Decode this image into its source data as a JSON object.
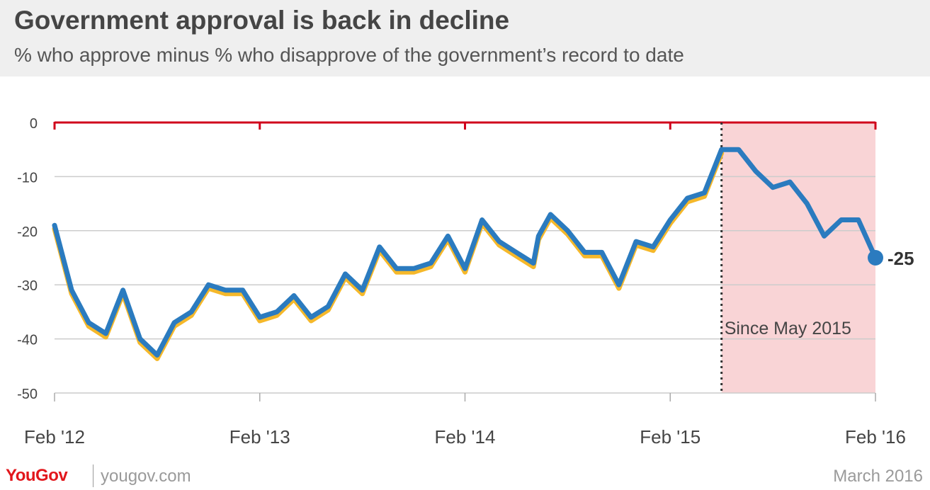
{
  "header": {
    "title": "Government approval is back in decline",
    "subtitle": "% who approve minus % who disapprove of the government’s record to date"
  },
  "footer": {
    "brand": "YouGov",
    "site": "yougov.com",
    "date": "March 2016"
  },
  "colors": {
    "line": "#2b7bbf",
    "shadow": "#f5b82a",
    "zero_axis": "#d0021b",
    "shade": "#f9d4d6",
    "grid": "#cccccc",
    "text": "#454545"
  },
  "chart_data": {
    "type": "line",
    "title": "Government approval is back in decline",
    "subtitle": "% who approve minus % who disapprove of the government’s record to date",
    "xlabel": "",
    "ylabel": "",
    "ylim": [
      -50,
      0
    ],
    "yticks": [
      0,
      -10,
      -20,
      -30,
      -40,
      -50
    ],
    "ytick_labels": [
      "0",
      "-10",
      "-20",
      "-30",
      "-40",
      "-50"
    ],
    "xticks": [
      "Feb '12",
      "Feb '13",
      "Feb '14",
      "Feb '15",
      "Feb '16"
    ],
    "grid": true,
    "x_unit": "months since Feb '12",
    "series": [
      {
        "x": [
          0,
          1,
          2,
          3,
          4,
          5,
          6,
          7,
          8,
          9,
          10,
          11,
          12,
          13,
          14,
          15,
          16,
          17,
          18,
          19,
          20,
          21,
          22,
          23,
          24,
          25,
          26,
          27,
          28,
          28.3,
          29,
          30,
          31,
          32,
          33,
          34,
          35,
          36,
          37,
          38,
          39,
          40,
          41,
          42,
          43,
          44,
          45,
          46,
          47,
          48
        ],
        "values": [
          -19,
          -31,
          -37,
          -39,
          -31,
          -40,
          -43,
          -37,
          -35,
          -30,
          -31,
          -31,
          -36,
          -35,
          -32,
          -36,
          -34,
          -28,
          -31,
          -23,
          -27,
          -27,
          -26,
          -21,
          -27,
          -18,
          -22,
          -24,
          -26,
          -21,
          -17,
          -20,
          -24,
          -24,
          -30,
          -22,
          -23,
          -18,
          -14,
          -13,
          -5,
          -5,
          -9,
          -12,
          -11,
          -15,
          -21,
          -18,
          -18,
          -25
        ]
      }
    ],
    "shaded_region": {
      "from": 39,
      "to": 48,
      "label": "Since May 2015"
    },
    "end_label": "-25",
    "end_value": -25
  }
}
